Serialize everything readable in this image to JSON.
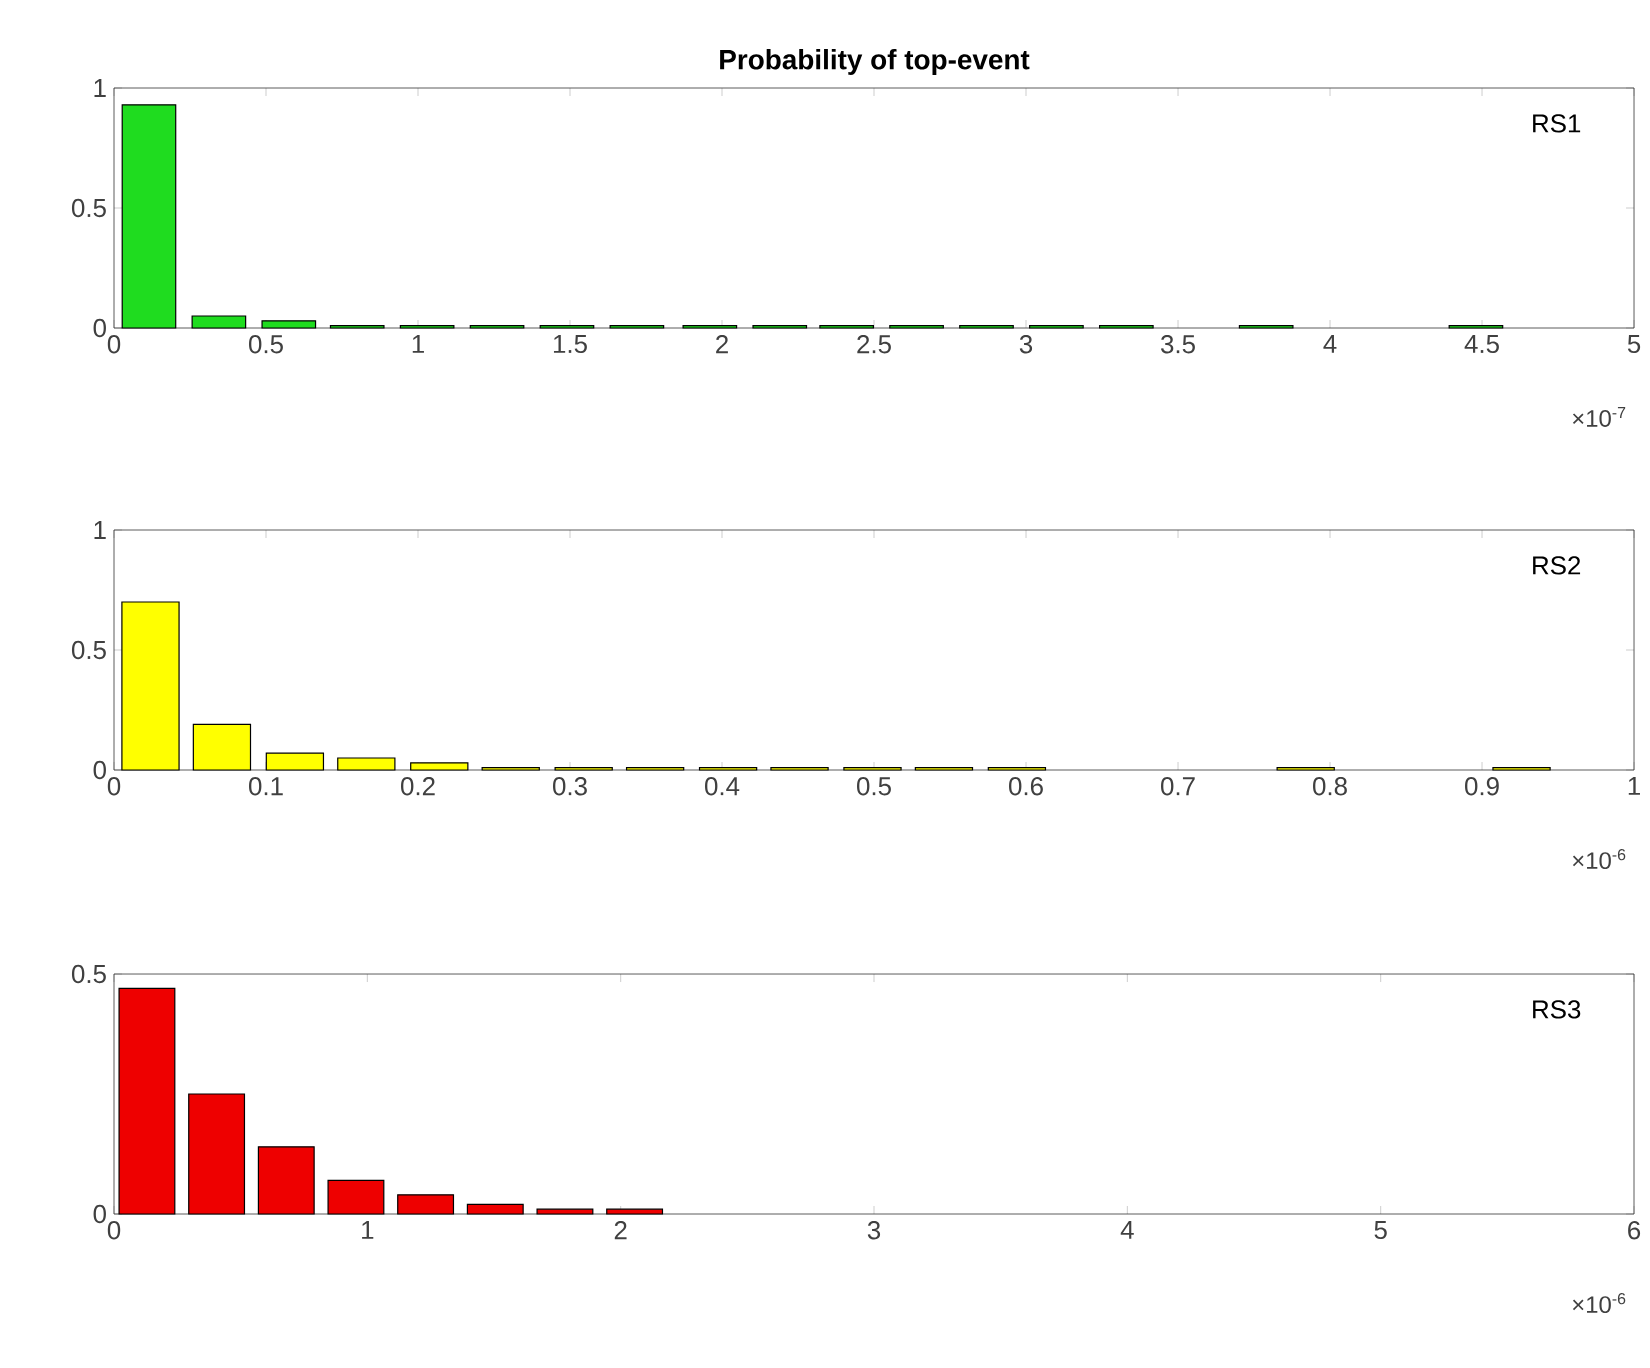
{
  "chart_data": [
    {
      "type": "bar",
      "title": "Probability of top-event",
      "color": "#1fdc1f",
      "x": [
        0.115,
        0.345,
        0.575,
        0.8,
        1.03,
        1.26,
        1.49,
        1.72,
        1.96,
        2.19,
        2.41,
        2.64,
        2.87,
        3.1,
        3.33,
        3.79,
        4.48
      ],
      "values": [
        0.93,
        0.05,
        0.03,
        0.01,
        0.01,
        0.01,
        0.01,
        0.01,
        0.01,
        0.01,
        0.01,
        0.01,
        0.01,
        0.01,
        0.01,
        0.01,
        0.01
      ],
      "xlim": [
        0,
        5
      ],
      "xticks": [
        0,
        0.5,
        1,
        1.5,
        2,
        2.5,
        3,
        3.5,
        4,
        4.5,
        5
      ],
      "ylim": [
        0,
        1
      ],
      "yticks": [
        0,
        0.5,
        1
      ],
      "annotations": [
        "RS1",
        "×10$^{-7}$"
      ]
    },
    {
      "type": "bar",
      "color": "#ffff00",
      "x": [
        0.024,
        0.071,
        0.119,
        0.166,
        0.214,
        0.261,
        0.309,
        0.356,
        0.404,
        0.451,
        0.499,
        0.546,
        0.594,
        0.784,
        0.926
      ],
      "values": [
        0.7,
        0.19,
        0.07,
        0.05,
        0.03,
        0.01,
        0.01,
        0.01,
        0.01,
        0.01,
        0.01,
        0.01,
        0.01,
        0.01,
        0.01
      ],
      "xlim": [
        0,
        1
      ],
      "xticks": [
        0,
        0.1,
        0.2,
        0.3,
        0.4,
        0.5,
        0.6,
        0.7,
        0.8,
        0.9,
        1
      ],
      "ylim": [
        0,
        1
      ],
      "yticks": [
        0,
        0.5,
        1
      ],
      "annotations": [
        "RS2",
        "×10$^{-6}$"
      ]
    },
    {
      "type": "bar",
      "color": "#ee0000",
      "x": [
        0.13,
        0.405,
        0.68,
        0.955,
        1.23,
        1.505,
        1.78,
        2.055
      ],
      "values": [
        0.47,
        0.25,
        0.14,
        0.07,
        0.04,
        0.02,
        0.01,
        0.01
      ],
      "xlim": [
        0,
        6
      ],
      "xticks": [
        0,
        1,
        2,
        3,
        4,
        5,
        6
      ],
      "ylim": [
        0,
        0.5
      ],
      "yticks": [
        0,
        0.5
      ],
      "annotations": [
        "RS3",
        "×10$^{-6}$"
      ]
    }
  ]
}
